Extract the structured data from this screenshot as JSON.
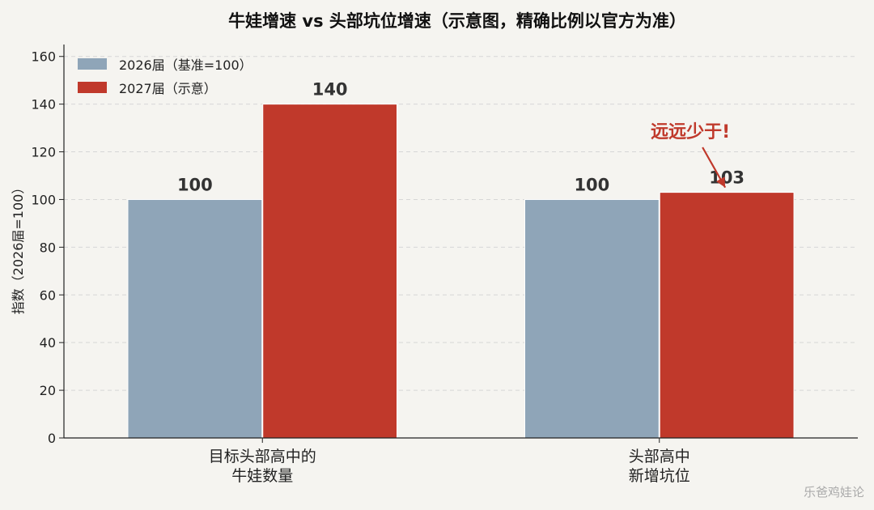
{
  "chart_data": {
    "type": "bar",
    "title": "牛娃增速 vs 头部坑位增速（示意图，精确比例以官方为准）",
    "ylabel": "指数（2026届=100）",
    "xlabel": "",
    "ylim": [
      0,
      165
    ],
    "yticks": [
      0,
      20,
      40,
      60,
      80,
      100,
      120,
      140,
      160
    ],
    "grid": "horizontal-dashed",
    "legend_position": "top-left",
    "categories": [
      [
        "目标头部高中的",
        "牛娃数量"
      ],
      [
        "头部高中",
        "新增坑位"
      ]
    ],
    "series": [
      {
        "name": "2026届（基准=100）",
        "color": "#8fa5b8",
        "values": [
          100,
          100
        ]
      },
      {
        "name": "2027届（示意）",
        "color": "#c0392b",
        "values": [
          140,
          103
        ]
      }
    ],
    "annotation": {
      "text": "远远少于!",
      "category_index": 1,
      "series_index": 1,
      "color": "#c0392b"
    }
  },
  "watermark": "乐爸鸡娃论"
}
